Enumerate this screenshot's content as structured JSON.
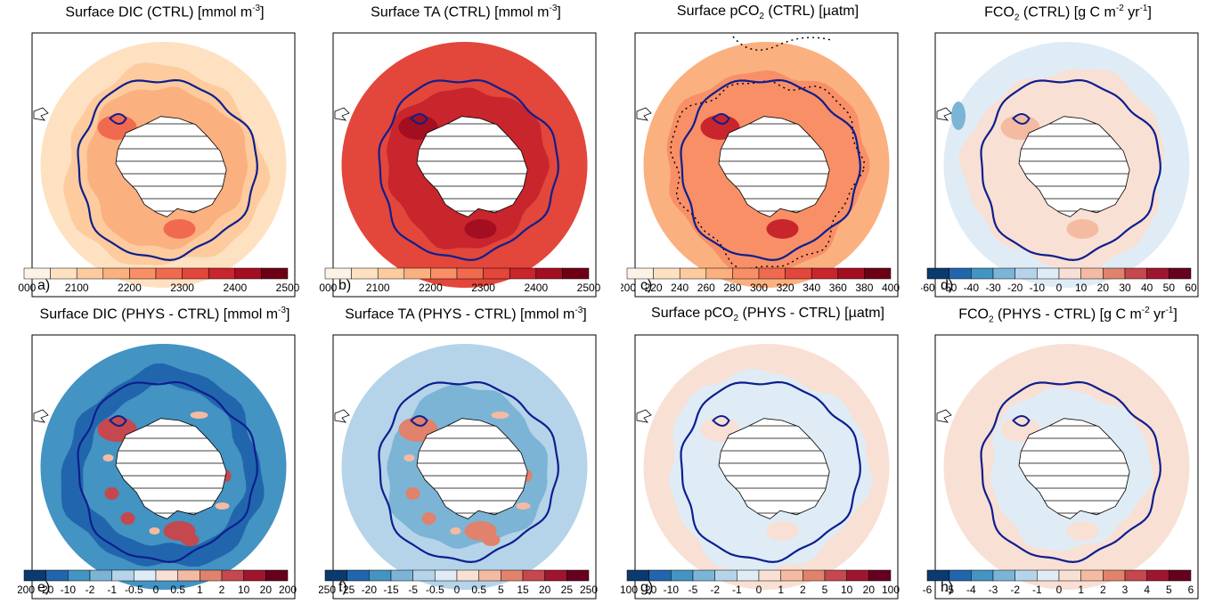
{
  "figure": {
    "panels": [
      {
        "id": "a",
        "title_parts": [
          "Surface DIC (CTRL) [mmol m",
          {
            "sup": "-3"
          },
          "]"
        ],
        "label": "a)",
        "field": "dic_ctrl",
        "colorbar": {
          "ticks": [
            "2000",
            "2100",
            "2200",
            "2300",
            "2400",
            "2500"
          ],
          "colors": [
            "#fdf2e6",
            "#fde1c1",
            "#fdcb9d",
            "#fbb07f",
            "#f88f66",
            "#f16a4f",
            "#e3463a",
            "#c8252d",
            "#a30e21",
            "#6d0014"
          ]
        }
      },
      {
        "id": "b",
        "title_parts": [
          "Surface TA (CTRL) [mmol m",
          {
            "sup": "-3"
          },
          "]"
        ],
        "label": "b)",
        "field": "ta_ctrl",
        "colorbar": {
          "ticks": [
            "2000",
            "2100",
            "2200",
            "2300",
            "2400",
            "2500"
          ],
          "colors": [
            "#fdf2e6",
            "#fde1c1",
            "#fdcb9d",
            "#fbb07f",
            "#f88f66",
            "#f16a4f",
            "#e3463a",
            "#c8252d",
            "#a30e21",
            "#6d0014"
          ]
        }
      },
      {
        "id": "c",
        "title_parts": [
          "Surface pCO",
          {
            "sub": "2"
          },
          " (CTRL) [µatm]"
        ],
        "label": "c)",
        "field": "pco2_ctrl",
        "colorbar": {
          "ticks": [
            "200",
            "220",
            "240",
            "260",
            "280",
            "300",
            "320",
            "340",
            "360",
            "380",
            "400"
          ],
          "colors": [
            "#fdf2e6",
            "#fde1c1",
            "#fdcb9d",
            "#fbb07f",
            "#f88f66",
            "#f16a4f",
            "#e3463a",
            "#c8252d",
            "#a30e21",
            "#6d0014"
          ]
        }
      },
      {
        "id": "d",
        "title_parts": [
          "FCO",
          {
            "sub": "2"
          },
          " (CTRL) [g C m",
          {
            "sup": "-2"
          },
          " yr",
          {
            "sup": "-1"
          },
          "]"
        ],
        "label": "d)",
        "field": "fco2_ctrl",
        "colorbar": {
          "ticks": [
            "-60",
            "-50",
            "-40",
            "-30",
            "-20",
            "-10",
            "0",
            "10",
            "20",
            "30",
            "40",
            "50",
            "60"
          ],
          "colors": [
            "#0b3a6e",
            "#2166ac",
            "#4393c3",
            "#7cb4d6",
            "#b5d4e9",
            "#dfecf5",
            "#f9e0d4",
            "#f4bba2",
            "#e0826c",
            "#c4484d",
            "#9e1530",
            "#67001f"
          ]
        }
      },
      {
        "id": "e",
        "title_parts": [
          "Surface DIC (PHYS - CTRL) [mmol m",
          {
            "sup": "-3"
          },
          "]"
        ],
        "label": "e)",
        "field": "dic_diff",
        "colorbar": {
          "ticks": [
            "-200",
            "-20",
            "-10",
            "-2",
            "-1",
            "-0.5",
            "0",
            "0.5",
            "1",
            "2",
            "10",
            "20",
            "200"
          ],
          "colors": [
            "#0b3a6e",
            "#2166ac",
            "#4393c3",
            "#7cb4d6",
            "#b5d4e9",
            "#dfecf5",
            "#f9e0d4",
            "#f4bba2",
            "#e0826c",
            "#c4484d",
            "#9e1530",
            "#67001f"
          ]
        }
      },
      {
        "id": "f",
        "title_parts": [
          "Surface TA (PHYS - CTRL) [mmol m",
          {
            "sup": "-3"
          },
          "]"
        ],
        "label": "f)",
        "field": "ta_diff",
        "colorbar": {
          "ticks": [
            "-250",
            "-25",
            "-20",
            "-15",
            "-5",
            "-0.5",
            "0",
            "0.5",
            "5",
            "15",
            "20",
            "25",
            "250"
          ],
          "colors": [
            "#0b3a6e",
            "#2166ac",
            "#4393c3",
            "#7cb4d6",
            "#b5d4e9",
            "#dfecf5",
            "#f9e0d4",
            "#f4bba2",
            "#e0826c",
            "#c4484d",
            "#9e1530",
            "#67001f"
          ]
        }
      },
      {
        "id": "g",
        "title_parts": [
          "Surface pCO",
          {
            "sub": "2"
          },
          " (PHYS - CTRL) [µatm]"
        ],
        "label": "g)",
        "field": "pco2_diff",
        "colorbar": {
          "ticks": [
            "-100",
            "-20",
            "-10",
            "-5",
            "-2",
            "-1",
            "0",
            "1",
            "2",
            "5",
            "10",
            "20",
            "100"
          ],
          "colors": [
            "#0b3a6e",
            "#2166ac",
            "#4393c3",
            "#7cb4d6",
            "#b5d4e9",
            "#dfecf5",
            "#f9e0d4",
            "#f4bba2",
            "#e0826c",
            "#c4484d",
            "#9e1530",
            "#67001f"
          ]
        }
      },
      {
        "id": "h",
        "title_parts": [
          "FCO",
          {
            "sub": "2"
          },
          " (PHYS - CTRL) [g C m",
          {
            "sup": "-2"
          },
          " yr",
          {
            "sup": "-1"
          },
          "]"
        ],
        "label": "h)",
        "field": "fco2_diff",
        "colorbar": {
          "ticks": [
            "-6",
            "-5",
            "-4",
            "-3",
            "-2",
            "-1",
            "0",
            "1",
            "2",
            "3",
            "4",
            "5",
            "6"
          ],
          "colors": [
            "#0b3a6e",
            "#2166ac",
            "#4393c3",
            "#7cb4d6",
            "#b5d4e9",
            "#dfecf5",
            "#f9e0d4",
            "#f4bba2",
            "#e0826c",
            "#c4484d",
            "#9e1530",
            "#67001f"
          ]
        }
      }
    ],
    "colors": {
      "front_line": "#0d1f8f",
      "contour_dotted": "#000000",
      "land_fill": "#ffffff",
      "frame": "#000000"
    }
  },
  "chart_data": [
    {
      "type": "heatmap",
      "title": "Surface DIC (CTRL) [mmol m-3]",
      "projection": "south-polar-stereographic",
      "colorbar_range": [
        2000,
        2500
      ],
      "levels": [
        2000,
        2050,
        2100,
        2150,
        2200,
        2250,
        2300,
        2350,
        2400,
        2450,
        2500
      ],
      "regions": {
        "outer_ocean": 2100,
        "inner_ring": 2200,
        "weddell_sea": 2300,
        "ross_sea": 2250
      }
    },
    {
      "type": "heatmap",
      "title": "Surface TA (CTRL) [mmol m-3]",
      "projection": "south-polar-stereographic",
      "colorbar_range": [
        2000,
        2500
      ],
      "levels": [
        2000,
        2050,
        2100,
        2150,
        2200,
        2250,
        2300,
        2350,
        2400,
        2450,
        2500
      ],
      "regions": {
        "outer_ocean": 2330,
        "inner_ring": 2380,
        "weddell_sea": 2450,
        "ross_sea": 2400
      }
    },
    {
      "type": "heatmap",
      "title": "Surface pCO2 (CTRL) [µatm]",
      "projection": "south-polar-stereographic",
      "colorbar_range": [
        200,
        400
      ],
      "levels": [
        200,
        220,
        240,
        260,
        280,
        300,
        320,
        340,
        360,
        380,
        400
      ],
      "regions": {
        "outer_ocean": 290,
        "inner_ring": 310,
        "weddell_sea": 360,
        "ross_sea": 330
      }
    },
    {
      "type": "heatmap",
      "title": "FCO2 (CTRL) [g C m-2 yr-1]",
      "projection": "south-polar-stereographic",
      "colorbar_range": [
        -60,
        60
      ],
      "levels": [
        -60,
        -50,
        -40,
        -30,
        -20,
        -10,
        0,
        10,
        20,
        30,
        40,
        50,
        60
      ],
      "regions": {
        "outer_ocean": -5,
        "inner_ring": 5,
        "weddell_sea": 15,
        "ross_sea": 8
      }
    },
    {
      "type": "heatmap",
      "title": "Surface DIC (PHYS - CTRL) [mmol m-3]",
      "projection": "south-polar-stereographic",
      "colorbar_range": [
        -200,
        200
      ],
      "levels": [
        -200,
        -20,
        -10,
        -2,
        -1,
        -0.5,
        0,
        0.5,
        1,
        2,
        10,
        20,
        200
      ],
      "regions": {
        "outer_ocean": -15,
        "inner_ring": -12,
        "coastal_hotspots": 15
      }
    },
    {
      "type": "heatmap",
      "title": "Surface TA (PHYS - CTRL) [mmol m-3]",
      "projection": "south-polar-stereographic",
      "colorbar_range": [
        -250,
        250
      ],
      "levels": [
        -250,
        -25,
        -20,
        -15,
        -5,
        -0.5,
        0,
        0.5,
        5,
        15,
        20,
        25,
        250
      ],
      "regions": {
        "outer_ocean": -3,
        "inner_ring": -10,
        "coastal_hotspots": 10
      }
    },
    {
      "type": "heatmap",
      "title": "Surface pCO2 (PHYS - CTRL) [µatm]",
      "projection": "south-polar-stereographic",
      "colorbar_range": [
        -100,
        100
      ],
      "levels": [
        -100,
        -20,
        -10,
        -5,
        -2,
        -1,
        0,
        1,
        2,
        5,
        10,
        20,
        100
      ],
      "regions": {
        "outer_ocean": 0.5,
        "inner_ring": -0.5
      }
    },
    {
      "type": "heatmap",
      "title": "FCO2 (PHYS - CTRL) [g C m-2 yr-1]",
      "projection": "south-polar-stereographic",
      "colorbar_range": [
        -6,
        6
      ],
      "levels": [
        -6,
        -5,
        -4,
        -3,
        -2,
        -1,
        0,
        1,
        2,
        3,
        4,
        5,
        6
      ],
      "regions": {
        "outer_ocean": 0.5,
        "inner_ring": -0.5
      }
    }
  ]
}
